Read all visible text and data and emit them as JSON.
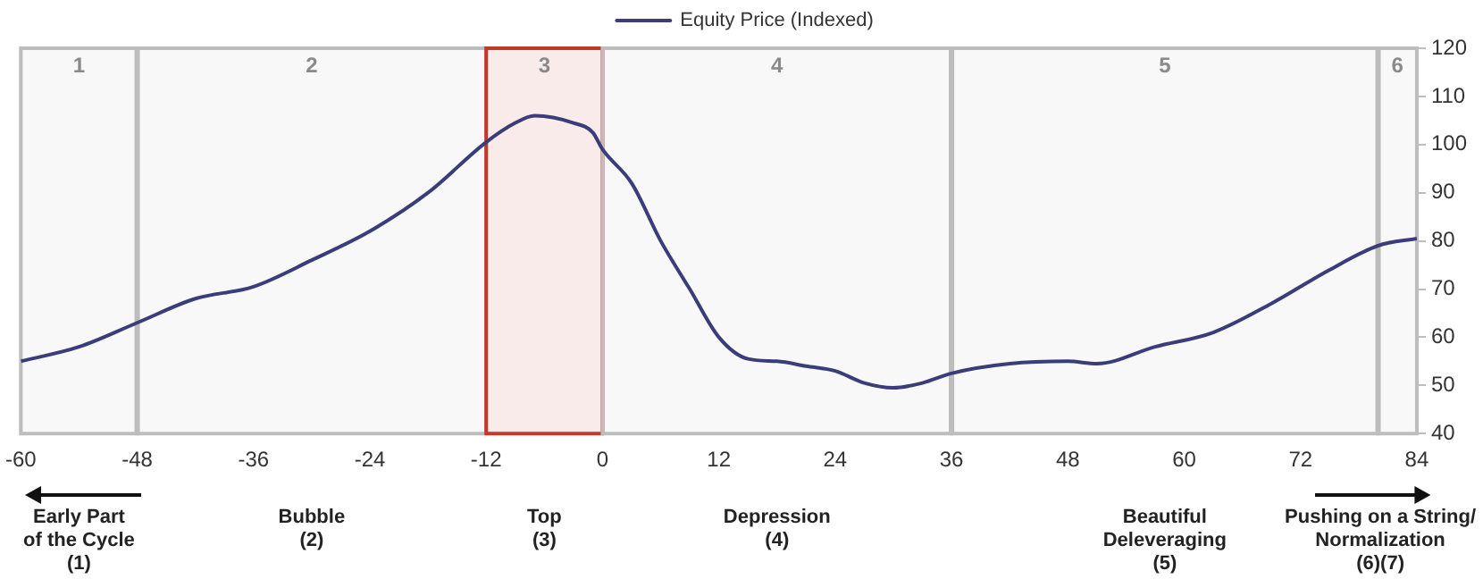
{
  "chart_data": {
    "type": "line",
    "legend": "top",
    "series": [
      {
        "name": "Equity Price (Indexed)",
        "color": "#3b3d7a",
        "x": [
          -60,
          -54,
          -48,
          -42,
          -36,
          -30,
          -24,
          -18,
          -12,
          -9,
          -7,
          -3,
          -1,
          0,
          3,
          6,
          9,
          12,
          15,
          18,
          21,
          24,
          27,
          30,
          33,
          36,
          42,
          48,
          51,
          57,
          63,
          69,
          75,
          80,
          84
        ],
        "values": [
          55,
          58,
          63,
          68,
          70.5,
          76,
          82,
          90,
          100.5,
          104.5,
          106,
          104.5,
          102.5,
          99,
          92,
          80,
          70,
          60,
          55.5,
          55,
          54,
          53,
          50.5,
          49.5,
          50.5,
          52.5,
          54.5,
          55,
          54.5,
          58,
          61,
          67,
          74,
          79,
          80.5
        ]
      }
    ],
    "xlim": [
      -60,
      84
    ],
    "xticks": [
      -60,
      -48,
      -36,
      -24,
      -12,
      0,
      12,
      24,
      36,
      48,
      60,
      72,
      84
    ],
    "ylim": [
      40,
      120
    ],
    "yticks": [
      40,
      50,
      60,
      70,
      80,
      90,
      100,
      110,
      120
    ],
    "grid": false,
    "marker": "none",
    "line_style": "solid",
    "ref_lines": [
      {
        "axis": "x",
        "value": -48,
        "label": null,
        "color": "#bdbdbd"
      },
      {
        "axis": "x",
        "value": 36,
        "label": null,
        "color": "#bdbdbd"
      },
      {
        "axis": "x",
        "value": 80,
        "label": null,
        "color": "#bdbdbd"
      }
    ],
    "bands": [
      {
        "axis": "x",
        "from": -60,
        "to": -48,
        "label": "1"
      },
      {
        "axis": "x",
        "from": -48,
        "to": -12,
        "label": "2"
      },
      {
        "axis": "x",
        "from": -12,
        "to": 0,
        "label": "3",
        "color": "#c0392b"
      },
      {
        "axis": "x",
        "from": 0,
        "to": 36,
        "label": "4"
      },
      {
        "axis": "x",
        "from": 36,
        "to": 80,
        "label": "5"
      },
      {
        "axis": "x",
        "from": 80,
        "to": 84,
        "label": "6"
      }
    ],
    "annotations": [
      "Early Part\nof the Cycle\n(1)",
      "Bubble\n(2)",
      "Top\n(3)",
      "Depression\n(4)",
      "Beautiful\nDeleveraging\n(5)",
      "Pushing on a String/\nNormalization\n(6)(7)"
    ]
  }
}
